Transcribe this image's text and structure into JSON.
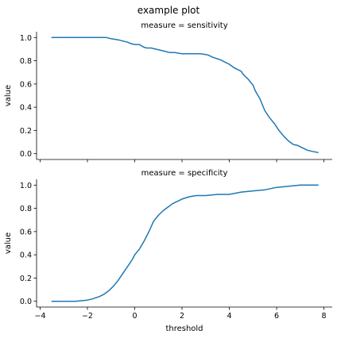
{
  "figure": {
    "title": "example plot"
  },
  "chart_data": [
    {
      "type": "line",
      "title": "measure = sensitivity",
      "xlabel": "",
      "ylabel": "value",
      "xlim": [
        -4.15,
        8.35
      ],
      "ylim": [
        -0.05,
        1.05
      ],
      "xticks": [
        -4,
        -2,
        0,
        2,
        4,
        6,
        8
      ],
      "xtick_labels": [],
      "yticks": [
        0.0,
        0.2,
        0.4,
        0.6,
        0.8,
        1.0
      ],
      "ytick_labels": [
        "0.0",
        "0.2",
        "0.4",
        "0.6",
        "0.8",
        "1.0"
      ],
      "grid": false,
      "color": "#1f77b4",
      "series": [
        {
          "x": [
            -3.5,
            -1.2,
            -1.0,
            -0.7,
            -0.5,
            -0.3,
            -0.2,
            0.0,
            0.2,
            0.35,
            0.5,
            0.7,
            0.9,
            1.1,
            1.3,
            1.5,
            1.7,
            2.0,
            2.4,
            2.8,
            3.1,
            3.3,
            3.6,
            3.8,
            4.0,
            4.2,
            4.5,
            4.6,
            4.8,
            5.0,
            5.1,
            5.3,
            5.5,
            5.7,
            5.9,
            6.1,
            6.3,
            6.5,
            6.7,
            6.9,
            7.1,
            7.3,
            7.5,
            7.75
          ],
          "y": [
            1.0,
            1.0,
            0.99,
            0.98,
            0.97,
            0.96,
            0.95,
            0.94,
            0.94,
            0.92,
            0.91,
            0.91,
            0.9,
            0.89,
            0.88,
            0.87,
            0.87,
            0.86,
            0.86,
            0.86,
            0.85,
            0.83,
            0.81,
            0.79,
            0.77,
            0.74,
            0.71,
            0.68,
            0.64,
            0.59,
            0.54,
            0.47,
            0.37,
            0.31,
            0.26,
            0.2,
            0.15,
            0.11,
            0.08,
            0.07,
            0.05,
            0.03,
            0.02,
            0.01
          ]
        }
      ]
    },
    {
      "type": "line",
      "title": "measure = specificity",
      "xlabel": "threshold",
      "ylabel": "value",
      "xlim": [
        -4.15,
        8.35
      ],
      "ylim": [
        -0.05,
        1.05
      ],
      "xticks": [
        -4,
        -2,
        0,
        2,
        4,
        6,
        8
      ],
      "xtick_labels": [
        "−4",
        "−2",
        "0",
        "2",
        "4",
        "6",
        "8"
      ],
      "yticks": [
        0.0,
        0.2,
        0.4,
        0.6,
        0.8,
        1.0
      ],
      "ytick_labels": [
        "0.0",
        "0.2",
        "0.4",
        "0.6",
        "0.8",
        "1.0"
      ],
      "grid": false,
      "color": "#1f77b4",
      "series": [
        {
          "x": [
            -3.5,
            -3.0,
            -2.5,
            -2.0,
            -1.8,
            -1.5,
            -1.3,
            -1.1,
            -0.9,
            -0.7,
            -0.5,
            -0.3,
            -0.1,
            0.0,
            0.2,
            0.4,
            0.6,
            0.8,
            1.0,
            1.2,
            1.4,
            1.6,
            1.8,
            2.0,
            2.3,
            2.6,
            3.0,
            3.5,
            4.0,
            4.5,
            5.0,
            5.5,
            6.0,
            6.5,
            7.0,
            7.75
          ],
          "y": [
            0.0,
            0.0,
            0.0,
            0.01,
            0.02,
            0.04,
            0.06,
            0.09,
            0.13,
            0.18,
            0.24,
            0.3,
            0.36,
            0.4,
            0.45,
            0.52,
            0.6,
            0.69,
            0.74,
            0.78,
            0.81,
            0.84,
            0.86,
            0.88,
            0.9,
            0.91,
            0.91,
            0.92,
            0.92,
            0.94,
            0.95,
            0.96,
            0.98,
            0.99,
            1.0,
            1.0
          ]
        }
      ]
    }
  ]
}
